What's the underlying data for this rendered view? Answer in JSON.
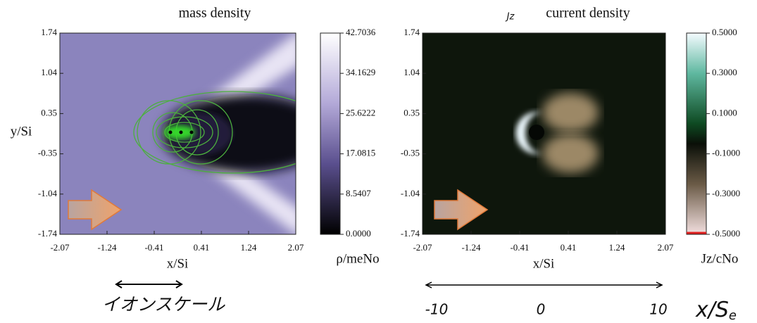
{
  "panels": [
    {
      "title": "mass density",
      "x_label": "x/Si",
      "y_label": "y/Si",
      "x_ticks": [
        "-2.07",
        "-1.24",
        "-0.41",
        "0.41",
        "1.24",
        "2.07"
      ],
      "y_ticks": [
        "1.74",
        "1.04",
        "0.35",
        "-0.35",
        "-1.04",
        "-1.74"
      ],
      "colorbar_ticks": [
        "42.7036",
        "34.1629",
        "25.6222",
        "17.0815",
        "8.5407",
        "0.0000"
      ],
      "colorbar_label": "ρ/meNo"
    },
    {
      "title_symbol": "Jz",
      "title": "current density",
      "x_label": "x/Si",
      "x_ticks": [
        "-2.07",
        "-1.24",
        "-0.41",
        "0.41",
        "1.24",
        "2.07"
      ],
      "y_ticks": [
        "1.74",
        "1.04",
        "0.35",
        "-0.35",
        "-1.04",
        "-1.74"
      ],
      "colorbar_ticks": [
        "0.5000",
        "0.3000",
        "0.1000",
        "-0.1000",
        "-0.3000",
        "-0.5000"
      ],
      "colorbar_label": "Jz/cNo"
    }
  ],
  "annotations": {
    "ion_scale": "イオンスケール",
    "scale_ticks": [
      "-10",
      "0",
      "10"
    ],
    "scale_label": "x/S",
    "scale_label_sub": "e"
  }
}
